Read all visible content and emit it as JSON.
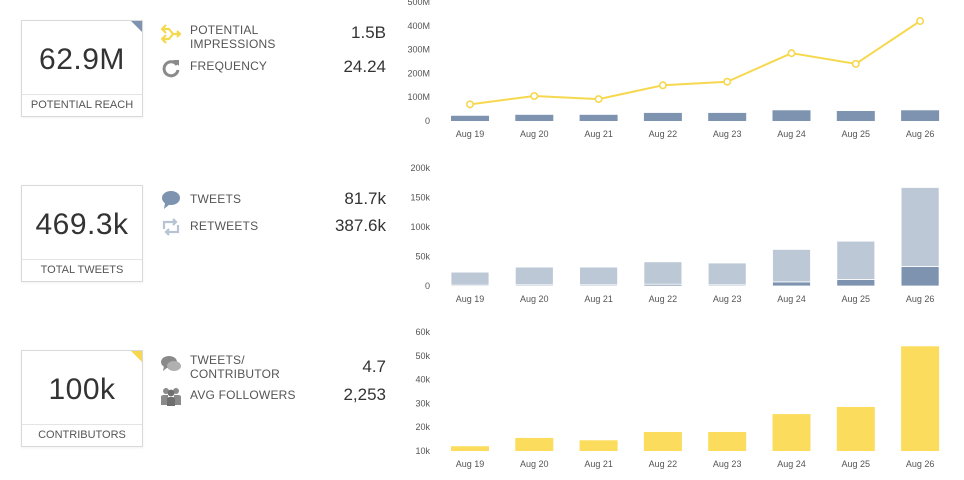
{
  "sections": [
    {
      "card": {
        "value": "62.9M",
        "label": "POTENTIAL REACH",
        "corner_color": "#7d93b0"
      },
      "metrics": [
        {
          "label_lines": [
            "POTENTIAL",
            "IMPRESSIONS"
          ],
          "value": "1.5B",
          "icon": "arrows-split-icon",
          "icon_color": "#f6d84f"
        },
        {
          "label_lines": [
            "FREQUENCY"
          ],
          "value": "24.24",
          "icon": "refresh-icon",
          "icon_color": "#8a8a8a"
        }
      ]
    },
    {
      "card": {
        "value": "469.3k",
        "label": "TOTAL TWEETS"
      },
      "metrics": [
        {
          "label_lines": [
            "TWEETS"
          ],
          "value": "81.7k",
          "icon": "speech-bubble-icon",
          "icon_color": "#7d93b0"
        },
        {
          "label_lines": [
            "RETWEETS"
          ],
          "value": "387.6k",
          "icon": "retweet-icon",
          "icon_color": "#b8c4d4"
        }
      ]
    },
    {
      "card": {
        "value": "100k",
        "label": "CONTRIBUTORS",
        "corner_color": "#f6d84f"
      },
      "metrics": [
        {
          "label_lines": [
            "TWEETS/",
            "CONTRIBUTOR"
          ],
          "value": "4.7",
          "icon": "chat-bubbles-icon",
          "icon_color": "#8a8a8a"
        },
        {
          "label_lines": [
            "AVG FOLLOWERS"
          ],
          "value": "2,253",
          "icon": "people-icon",
          "icon_color": "#8a8a8a"
        }
      ]
    }
  ],
  "chart_data": [
    {
      "type": "bar",
      "categories": [
        "Aug 19",
        "Aug 20",
        "Aug 21",
        "Aug 22",
        "Aug 23",
        "Aug 24",
        "Aug 25",
        "Aug 26"
      ],
      "yticks": [
        "0",
        "100M",
        "200M",
        "300M",
        "400M",
        "500M"
      ],
      "ylim": [
        0,
        500000000
      ],
      "series": [
        {
          "values": [
            22000000,
            26000000,
            26000000,
            34000000,
            34000000,
            45000000,
            42000000,
            45000000
          ],
          "color": "#7d93b0",
          "kind": "bar"
        },
        {
          "values": [
            70000000,
            105000000,
            92000000,
            150000000,
            165000000,
            285000000,
            240000000,
            420000000
          ],
          "color": "#f6d84f",
          "kind": "line"
        }
      ]
    },
    {
      "type": "bar",
      "stacked": true,
      "categories": [
        "Aug 19",
        "Aug 20",
        "Aug 21",
        "Aug 22",
        "Aug 23",
        "Aug 24",
        "Aug 25",
        "Aug 26"
      ],
      "yticks": [
        "0",
        "50k",
        "100k",
        "150k",
        "200k"
      ],
      "ylim": [
        0,
        200000
      ],
      "series": [
        {
          "values": [
            1500,
            2000,
            2000,
            3000,
            2000,
            7000,
            11000,
            33000
          ],
          "color": "#7d93b0"
        },
        {
          "values": [
            22000,
            30000,
            30000,
            38000,
            37000,
            55000,
            65000,
            134000
          ],
          "color": "#bcc8d6"
        }
      ]
    },
    {
      "type": "bar",
      "categories": [
        "Aug 19",
        "Aug 20",
        "Aug 21",
        "Aug 22",
        "Aug 23",
        "Aug 24",
        "Aug 25",
        "Aug 26"
      ],
      "yticks": [
        "10k",
        "20k",
        "30k",
        "40k",
        "50k",
        "60k"
      ],
      "ylim": [
        10000,
        60000
      ],
      "series": [
        {
          "values": [
            12000,
            15500,
            14500,
            18000,
            18000,
            25500,
            28500,
            54000
          ],
          "color": "#fcdc5c"
        }
      ]
    }
  ]
}
